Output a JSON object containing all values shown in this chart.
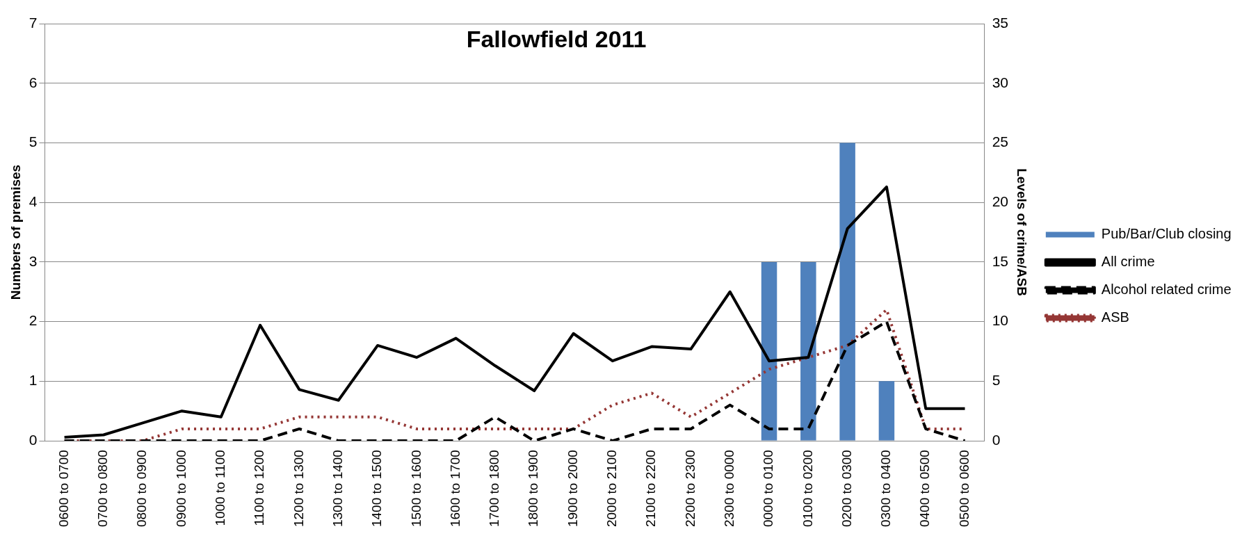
{
  "chart_data": {
    "type": "bar",
    "title": "Fallowfield 2011",
    "ylabel": "Numbers of premises",
    "y2label": "Levels of crime/ASB",
    "categories": [
      "0600 to 0700",
      "0700 to 0800",
      "0800 to 0900",
      "0900 to 1000",
      "1000 to 1100",
      "1100 to 1200",
      "1200 to 1300",
      "1300 to 1400",
      "1400 to 1500",
      "1500 to 1600",
      "1600 to 1700",
      "1700 to 1800",
      "1800 to 1900",
      "1900 to 2000",
      "2000 to 2100",
      "2100 to 2200",
      "2200 to 2300",
      "2300 to 0000",
      "0000 to 0100",
      "0100 to 0200",
      "0200 to 0300",
      "0300 to 0400",
      "0400 to 0500",
      "0500 to 0600"
    ],
    "series": [
      {
        "name": "Pub/Bar/Club closing",
        "color": "#4f81bd",
        "values": [
          0,
          0,
          0,
          0,
          0,
          0,
          0,
          0,
          0,
          0,
          0,
          0,
          0,
          0,
          0,
          0,
          0,
          0,
          3,
          3,
          5,
          1,
          0,
          0
        ]
      },
      {
        "name": "All crime",
        "type": "line",
        "axis": "y2",
        "color": "#000000",
        "line_style": "solid",
        "values": [
          0.3,
          0.5,
          1.5,
          2.5,
          2,
          9.7,
          4.3,
          3.4,
          8,
          7,
          8.6,
          6.3,
          4.2,
          9,
          6.7,
          7.9,
          7.7,
          12.5,
          6.7,
          7,
          17.8,
          21.3,
          2.7,
          2.7
        ]
      },
      {
        "name": "Alcohol related crime",
        "type": "line",
        "axis": "y2",
        "color": "#000000",
        "line_style": "dashed",
        "values": [
          0,
          0,
          0,
          0,
          0,
          0,
          1,
          0,
          0,
          0,
          0,
          2,
          0,
          1,
          0,
          1,
          1,
          3,
          1,
          1,
          8,
          10,
          1,
          0
        ]
      },
      {
        "name": "ASB",
        "type": "line",
        "axis": "y2",
        "color": "#953735",
        "line_style": "dotted",
        "values": [
          0,
          0,
          0,
          1,
          1,
          1,
          2,
          2,
          2,
          1,
          1,
          1,
          1,
          1,
          3,
          4,
          2,
          4,
          6,
          7,
          8,
          11,
          1,
          1
        ]
      }
    ],
    "ylim": [
      0,
      7
    ],
    "yticks": [
      0,
      1,
      2,
      3,
      4,
      5,
      6,
      7
    ],
    "y2lim": [
      0,
      35
    ],
    "y2ticks": [
      0,
      5,
      10,
      15,
      20,
      25,
      30,
      35
    ],
    "grid": "y",
    "legend": "right",
    "marker": "none"
  }
}
